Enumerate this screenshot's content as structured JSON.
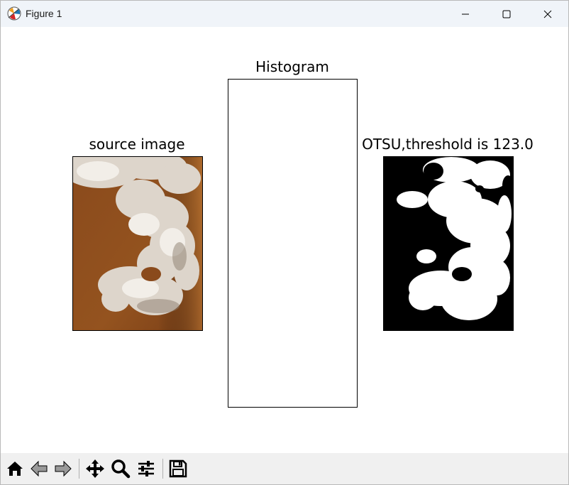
{
  "window": {
    "title": "Figure 1"
  },
  "figure": {
    "source_title": "source image",
    "histogram_title": "Histogram",
    "otsu_title": "OTSU,threshold is 123.0"
  },
  "chart_data": {
    "type": "bar",
    "title": "Histogram",
    "xlabel": "",
    "ylabel": "",
    "xlim": [
      0,
      255
    ],
    "values": [
      0,
      0,
      0,
      0,
      0,
      0,
      0,
      0,
      0,
      0,
      0,
      0,
      0,
      0,
      0,
      0,
      0,
      0,
      0,
      0,
      0,
      0,
      0,
      0,
      0,
      0,
      0,
      0,
      0,
      0,
      0,
      0,
      0,
      0,
      0,
      0,
      0,
      0,
      0,
      0,
      0,
      0,
      0,
      0,
      0,
      0,
      0,
      0,
      0,
      0,
      0,
      0,
      0,
      0,
      0,
      0,
      0,
      0,
      0,
      0,
      0,
      0,
      0,
      0,
      0,
      0,
      0,
      0,
      0,
      0,
      0,
      0,
      0,
      0,
      0,
      0,
      0,
      0,
      0,
      0,
      0,
      0,
      0,
      0,
      0,
      0,
      0,
      0,
      0,
      0,
      0,
      0,
      0,
      0,
      0,
      0,
      0,
      0,
      0,
      0,
      0,
      0,
      0,
      0,
      0,
      0,
      0,
      0,
      0,
      0,
      0,
      0,
      0,
      0,
      0,
      0,
      0,
      0,
      0,
      0,
      0,
      0,
      0,
      0,
      0,
      0,
      0,
      0,
      0,
      0,
      0,
      0,
      0,
      0,
      0,
      0,
      0,
      0,
      0,
      0,
      0,
      0,
      0,
      0,
      0,
      0,
      0,
      0,
      0,
      0,
      0,
      0,
      0,
      0,
      0,
      0,
      0,
      0,
      0,
      0,
      0,
      0,
      0,
      0,
      0,
      0,
      0,
      0,
      0,
      0,
      0,
      0,
      0,
      0,
      0,
      0,
      0,
      0,
      0,
      0,
      0,
      0,
      0,
      0,
      0,
      0,
      0,
      0,
      0,
      0,
      0,
      0,
      0,
      0,
      0,
      0,
      0,
      0,
      0,
      0,
      0,
      0,
      0,
      0,
      0,
      0,
      0,
      0,
      0,
      0,
      0,
      0,
      0,
      0,
      0,
      0,
      0,
      0,
      0,
      0,
      0,
      0,
      0,
      0,
      0,
      0,
      0,
      0,
      0,
      0,
      0,
      0,
      0,
      0,
      0,
      0,
      0,
      0,
      0,
      0,
      0,
      0,
      0,
      0,
      0,
      0,
      0,
      0,
      0,
      0,
      0,
      0,
      0,
      0,
      0,
      0,
      0
    ],
    "bar_color": "#1f77b4"
  },
  "toolbar": {
    "items": [
      "home-icon",
      "back-icon",
      "forward-icon",
      "pan-icon",
      "zoom-icon",
      "configure-icon",
      "save-icon"
    ]
  },
  "colors": {
    "accent": "#1f77b4",
    "sky": "#8b4c1e",
    "cloud": "#e8e2da"
  }
}
